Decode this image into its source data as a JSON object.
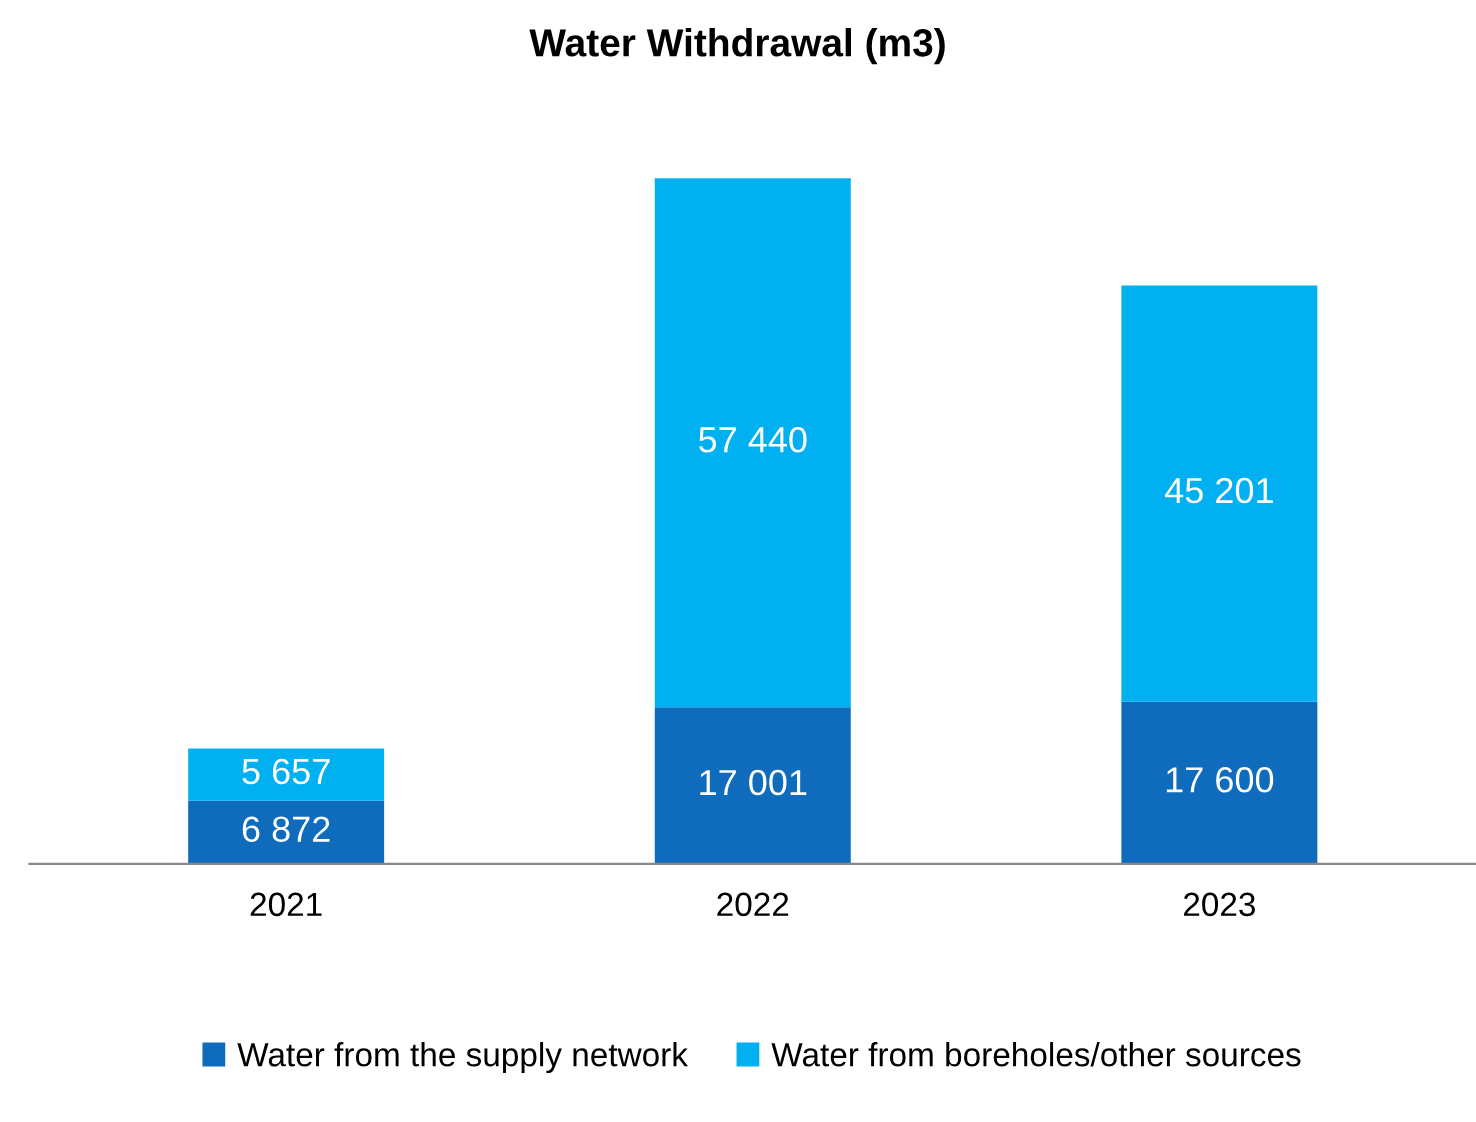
{
  "chart_data": {
    "type": "bar",
    "title": "Water Withdrawal (m3)",
    "stacked": true,
    "legend": "bottom",
    "grid": false,
    "categories": [
      "2021",
      "2022",
      "2023"
    ],
    "series": [
      {
        "name": "Water from the supply network",
        "color": "#0f6cbd",
        "values": [
          6872,
          17001,
          17600
        ],
        "value_labels": [
          "6 872",
          "17 001",
          "17 600"
        ]
      },
      {
        "name": "Water from boreholes/other sources",
        "color": "#00b0f0",
        "values": [
          5657,
          57440,
          45201
        ],
        "value_labels": [
          "5 657",
          "57 440",
          "45 201"
        ]
      }
    ]
  }
}
